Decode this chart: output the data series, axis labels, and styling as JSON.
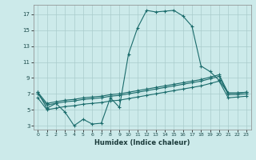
{
  "xlabel": "Humidex (Indice chaleur)",
  "bg_color": "#cceaea",
  "grid_color": "#aacccc",
  "line_color": "#1a6b6b",
  "xlim": [
    -0.5,
    23.5
  ],
  "ylim": [
    2.5,
    18.2
  ],
  "xticks": [
    0,
    1,
    2,
    3,
    4,
    5,
    6,
    7,
    8,
    9,
    10,
    11,
    12,
    13,
    14,
    15,
    16,
    17,
    18,
    19,
    20,
    21,
    22,
    23
  ],
  "yticks": [
    3,
    5,
    7,
    9,
    11,
    13,
    15,
    17
  ],
  "line1_x": [
    0,
    1,
    2,
    3,
    4,
    5,
    6,
    7,
    8,
    9,
    10,
    11,
    12,
    13,
    14,
    15,
    16,
    17,
    18,
    19,
    20,
    21,
    22,
    23
  ],
  "line1_y": [
    7.2,
    5.2,
    5.8,
    4.7,
    3.0,
    3.8,
    3.2,
    3.3,
    6.5,
    5.3,
    12.0,
    15.3,
    17.5,
    17.3,
    17.4,
    17.5,
    16.8,
    15.5,
    10.5,
    9.8,
    8.7,
    7.1,
    7.1,
    7.2
  ],
  "line2_x": [
    0,
    1,
    2,
    3,
    4,
    5,
    6,
    7,
    8,
    9,
    10,
    11,
    12,
    13,
    14,
    15,
    16,
    17,
    18,
    19,
    20,
    21,
    22,
    23
  ],
  "line2_y": [
    7.2,
    5.8,
    6.0,
    6.2,
    6.3,
    6.5,
    6.6,
    6.7,
    6.9,
    7.0,
    7.2,
    7.4,
    7.6,
    7.8,
    8.0,
    8.2,
    8.4,
    8.6,
    8.8,
    9.1,
    9.4,
    7.1,
    7.1,
    7.2
  ],
  "line3_x": [
    0,
    1,
    2,
    3,
    4,
    5,
    6,
    7,
    8,
    9,
    10,
    11,
    12,
    13,
    14,
    15,
    16,
    17,
    18,
    19,
    20,
    21,
    22,
    23
  ],
  "line3_y": [
    7.0,
    5.6,
    5.8,
    6.0,
    6.1,
    6.3,
    6.4,
    6.5,
    6.7,
    6.8,
    7.0,
    7.2,
    7.4,
    7.6,
    7.8,
    8.0,
    8.2,
    8.4,
    8.6,
    8.9,
    9.2,
    6.9,
    6.9,
    7.0
  ],
  "line4_x": [
    0,
    1,
    2,
    3,
    4,
    5,
    6,
    7,
    8,
    9,
    10,
    11,
    12,
    13,
    14,
    15,
    16,
    17,
    18,
    19,
    20,
    21,
    22,
    23
  ],
  "line4_y": [
    6.5,
    5.0,
    5.2,
    5.4,
    5.5,
    5.7,
    5.8,
    5.9,
    6.1,
    6.2,
    6.4,
    6.6,
    6.8,
    7.0,
    7.2,
    7.4,
    7.6,
    7.8,
    8.0,
    8.3,
    8.6,
    6.5,
    6.6,
    6.7
  ]
}
